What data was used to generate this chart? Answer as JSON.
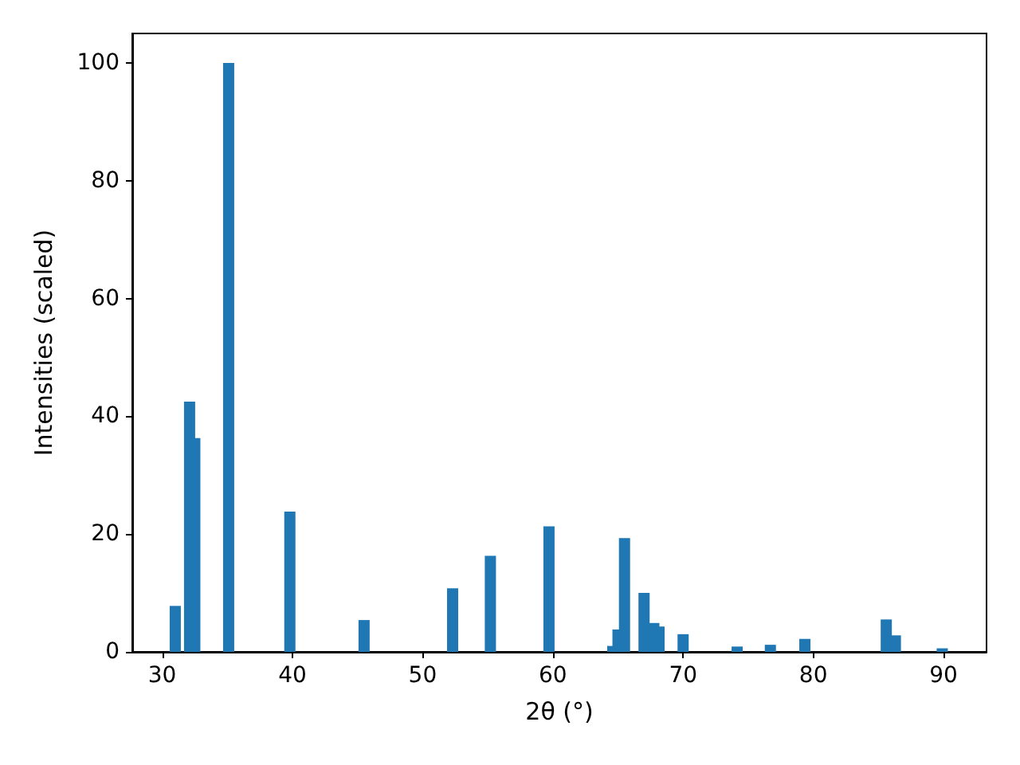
{
  "chart_data": {
    "type": "bar",
    "xlabel": "2θ (°)",
    "ylabel": "Intensities (scaled)",
    "x": [
      31.0,
      32.1,
      32.5,
      35.1,
      39.8,
      45.5,
      52.3,
      55.2,
      59.7,
      64.6,
      65.0,
      65.5,
      67.0,
      67.75,
      68.15,
      70.0,
      74.15,
      76.7,
      79.35,
      85.6,
      86.3,
      89.9
    ],
    "values": [
      7.8,
      42.5,
      36.3,
      100,
      23.8,
      5.4,
      10.8,
      16.3,
      21.3,
      1.0,
      3.8,
      19.3,
      10.0,
      4.9,
      4.3,
      3.0,
      0.9,
      1.2,
      2.2,
      5.5,
      2.8,
      0.6
    ],
    "color": "#1f77b4",
    "xlim": [
      27.7,
      93.3
    ],
    "xticks": [
      30,
      40,
      50,
      60,
      70,
      80,
      90
    ],
    "ylim": [
      0,
      105
    ],
    "yticks": [
      0,
      20,
      40,
      60,
      80,
      100
    ]
  }
}
